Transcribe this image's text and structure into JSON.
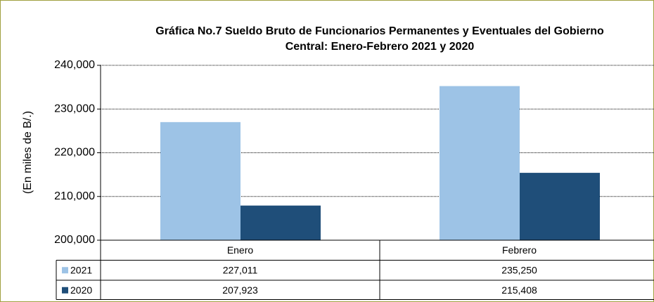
{
  "chart_data": {
    "type": "bar",
    "title": "Gráfica No.7 Sueldo Bruto de Funcionarios Permanentes y Eventuales del Gobierno Central: Enero-Febrero 2021 y 2020",
    "y_label": "(En miles de B/.)",
    "categories": [
      "Enero",
      "Febrero"
    ],
    "series": [
      {
        "name": "2021",
        "color": "#9dc3e6",
        "values": [
          227011,
          235250
        ],
        "value_labels": [
          "227,011",
          "235,250"
        ]
      },
      {
        "name": "2020",
        "color": "#1f4e79",
        "values": [
          207923,
          215408
        ],
        "value_labels": [
          "207,923",
          "215,408"
        ]
      }
    ],
    "ylim": [
      200000,
      240000
    ],
    "yticks": [
      {
        "value": 200000,
        "label": "200,000"
      },
      {
        "value": 210000,
        "label": "210,000"
      },
      {
        "value": 220000,
        "label": "220,000"
      },
      {
        "value": 230000,
        "label": "230,000"
      },
      {
        "value": 240000,
        "label": "240,000"
      }
    ],
    "grid": true
  }
}
